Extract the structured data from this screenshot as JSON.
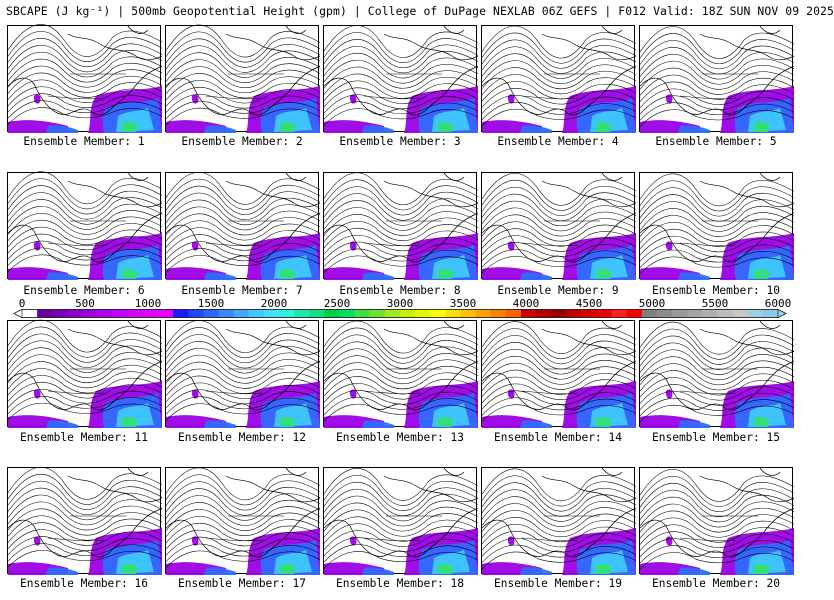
{
  "title": "SBCAPE (J kg⁻¹) | 500mb Geopotential Height (gpm) | College of DuPage NEXLAB 06Z GEFS | F012 Valid: 18Z SUN NOV 09 2025",
  "panels": [
    {
      "label": "Ensemble Member: 1"
    },
    {
      "label": "Ensemble Member: 2"
    },
    {
      "label": "Ensemble Member: 3"
    },
    {
      "label": "Ensemble Member: 4"
    },
    {
      "label": "Ensemble Member: 5"
    },
    {
      "label": "Ensemble Member: 6"
    },
    {
      "label": "Ensemble Member: 7"
    },
    {
      "label": "Ensemble Member: 8"
    },
    {
      "label": "Ensemble Member: 9"
    },
    {
      "label": "Ensemble Member: 10"
    },
    {
      "label": "Ensemble Member: 11"
    },
    {
      "label": "Ensemble Member: 12"
    },
    {
      "label": "Ensemble Member: 13"
    },
    {
      "label": "Ensemble Member: 14"
    },
    {
      "label": "Ensemble Member: 15"
    },
    {
      "label": "Ensemble Member: 16"
    },
    {
      "label": "Ensemble Member: 17"
    },
    {
      "label": "Ensemble Member: 18"
    },
    {
      "label": "Ensemble Member: 19"
    },
    {
      "label": "Ensemble Member: 20"
    }
  ],
  "colorbar": {
    "tick_labels": [
      "0",
      "500",
      "1000",
      "1500",
      "2000",
      "2500",
      "3000",
      "3500",
      "4000",
      "4500",
      "5000",
      "5500",
      "6000"
    ],
    "min": 0,
    "max": 6000,
    "colors": [
      "#ffffff",
      "#6a00a0",
      "#7a00b8",
      "#8c00cc",
      "#a000e0",
      "#b400f0",
      "#c800ff",
      "#d600ff",
      "#e000ff",
      "#ea00ff",
      "#1a1aff",
      "#2244ff",
      "#2e66ff",
      "#3a88ff",
      "#40aaff",
      "#40c8ff",
      "#40e0ff",
      "#30f0e0",
      "#20e8b0",
      "#10e080",
      "#00d040",
      "#00e060",
      "#40e040",
      "#70e030",
      "#a0e820",
      "#c8f000",
      "#e8f800",
      "#ffff00",
      "#ffe000",
      "#ffc000",
      "#ffa000",
      "#ff8000",
      "#ff6000",
      "#c80000",
      "#b00000",
      "#980000",
      "#c00000",
      "#d80000",
      "#f00000",
      "#ff2020",
      "#ff0000",
      "#808080",
      "#8c8c8c",
      "#989898",
      "#a4a4a4",
      "#b0b0b0",
      "#bcbcbc",
      "#c8c8c8",
      "#a0d0e0",
      "#90c8e8"
    ]
  },
  "colors": {
    "contour": "#000000",
    "cape_purple": "#9b00e6",
    "cape_blue": "#2f6bff",
    "cape_cyan": "#40c8ff",
    "cape_green": "#30e070"
  }
}
